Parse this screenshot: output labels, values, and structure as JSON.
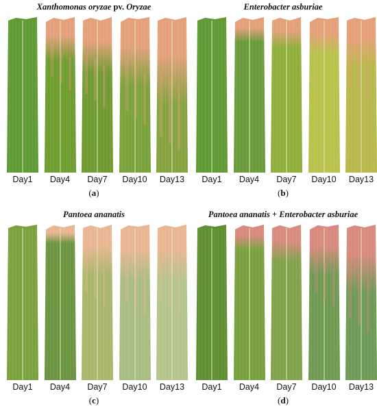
{
  "panels": [
    {
      "id": "a",
      "letter": "a",
      "title_parts": [
        {
          "text": "Xanthomonas oryzae",
          "italic": true
        },
        {
          "text": " pv. ",
          "italic": false
        },
        {
          "text": "Oryzae",
          "italic": true
        }
      ],
      "days": [
        "Day1",
        "Day4",
        "Day7",
        "Day10",
        "Day13"
      ],
      "base_colors": [
        "#5f9a35",
        "#6d9c2f",
        "#6f9a30",
        "#7aa23a",
        "#84a33e"
      ],
      "lesion_color": "#e3a07a",
      "lesion_levels": [
        0,
        0.35,
        0.45,
        0.55,
        0.7
      ]
    },
    {
      "id": "b",
      "letter": "b",
      "title_parts": [
        {
          "text": "Enterobacter asburiae",
          "italic": true
        }
      ],
      "days": [
        "Day1",
        "Day4",
        "Day7",
        "Day10",
        "Day13"
      ],
      "base_colors": [
        "#5f9a35",
        "#6a9a3a",
        "#8fae3a",
        "#b8c24a",
        "#b9b84a"
      ],
      "lesion_color": "#e4a078",
      "lesion_levels": [
        0,
        0.2,
        0.25,
        0.3,
        0.4
      ]
    },
    {
      "id": "c",
      "letter": "c",
      "title_parts": [
        {
          "text": "Pantoea ananatis",
          "italic": true
        }
      ],
      "days": [
        "Day1",
        "Day4",
        "Day7",
        "Day10",
        "Day13"
      ],
      "base_colors": [
        "#7aa23c",
        "#6b9440",
        "#a9b66a",
        "#a8bd82",
        "#b3c58a"
      ],
      "lesion_color": "#e9b692",
      "lesion_levels": [
        0,
        0.15,
        0.4,
        0.45,
        0.45
      ]
    },
    {
      "id": "d",
      "letter": "d",
      "title_parts": [
        {
          "text": "Pantoea ananatis",
          "italic": true
        },
        {
          "text": " + ",
          "italic": false
        },
        {
          "text": "Enterobacter asburiae",
          "italic": true
        }
      ],
      "days": [
        "Day1",
        "Day4",
        "Day7",
        "Day10",
        "Day13"
      ],
      "base_colors": [
        "#5f8f32",
        "#79a03e",
        "#7fa24a",
        "#6f9a52",
        "#6d9a55"
      ],
      "lesion_color": "#d88a7e",
      "lesion_levels": [
        0,
        0.2,
        0.3,
        0.4,
        0.55
      ]
    }
  ]
}
